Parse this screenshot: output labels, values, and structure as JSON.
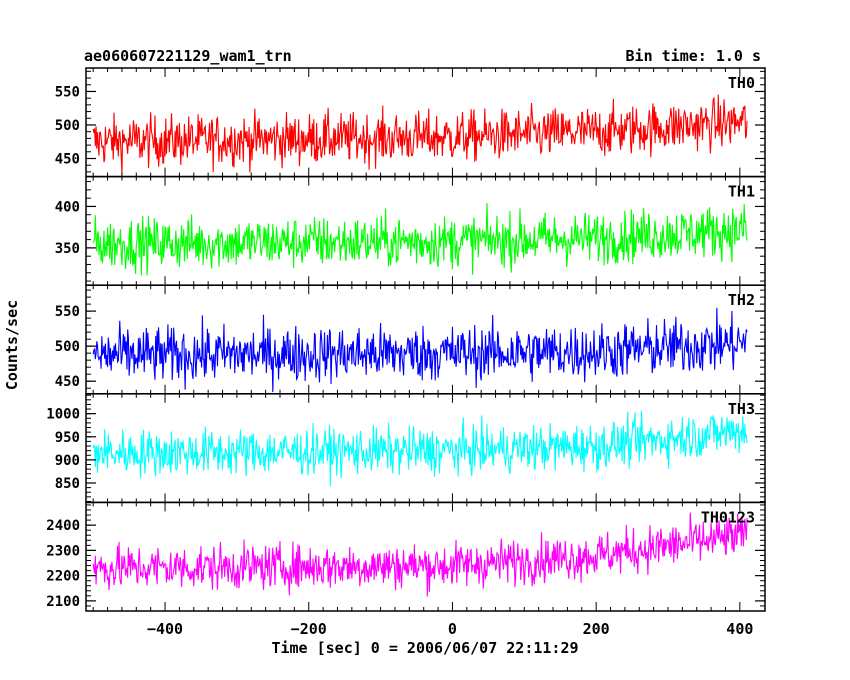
{
  "header": {
    "left_title": "ae060607221129_wam1_trn",
    "right_title": "Bin time: 1.0 s"
  },
  "chart_data": {
    "type": "line",
    "title": "ae060607221129_wam1_trn",
    "bin_time": "Bin time: 1.0 s",
    "xlabel": "Time [sec] 0 = 2006/06/07 22:11:29",
    "ylabel": "Counts/sec",
    "xlim": [
      -510,
      435
    ],
    "xticks": [
      -400,
      -200,
      0,
      200,
      400
    ],
    "x_range": [
      -500,
      410
    ],
    "bin": 1.0,
    "grid": false,
    "panels": [
      {
        "name": "TH0",
        "color": "#ff0000",
        "ylim": [
          423,
          585
        ],
        "yticks": [
          450,
          500,
          550
        ],
        "trend": [
          [
            -500,
            475
          ],
          [
            0,
            482
          ],
          [
            200,
            490
          ],
          [
            410,
            505
          ]
        ],
        "noise_amplitude": 34
      },
      {
        "name": "TH1",
        "color": "#00ff00",
        "ylim": [
          305,
          436
        ],
        "yticks": [
          350,
          400
        ],
        "trend": [
          [
            -500,
            355
          ],
          [
            0,
            358
          ],
          [
            200,
            362
          ],
          [
            410,
            372
          ]
        ],
        "noise_amplitude": 28
      },
      {
        "name": "TH2",
        "color": "#0000ff",
        "ylim": [
          432,
          587
        ],
        "yticks": [
          450,
          500,
          550
        ],
        "trend": [
          [
            -500,
            487
          ],
          [
            0,
            490
          ],
          [
            200,
            492
          ],
          [
            410,
            505
          ]
        ],
        "noise_amplitude": 36
      },
      {
        "name": "TH3",
        "color": "#00ffff",
        "ylim": [
          808,
          1043
        ],
        "yticks": [
          850,
          900,
          950,
          1000
        ],
        "trend": [
          [
            -500,
            915
          ],
          [
            0,
            920
          ],
          [
            200,
            930
          ],
          [
            410,
            965
          ]
        ],
        "noise_amplitude": 45
      },
      {
        "name": "TH0123",
        "color": "#ff00ff",
        "ylim": [
          2060,
          2490
        ],
        "yticks": [
          2100,
          2200,
          2300,
          2400
        ],
        "trend": [
          [
            -500,
            2230
          ],
          [
            0,
            2240
          ],
          [
            200,
            2280
          ],
          [
            410,
            2360
          ]
        ],
        "noise_amplitude": 80
      }
    ]
  }
}
